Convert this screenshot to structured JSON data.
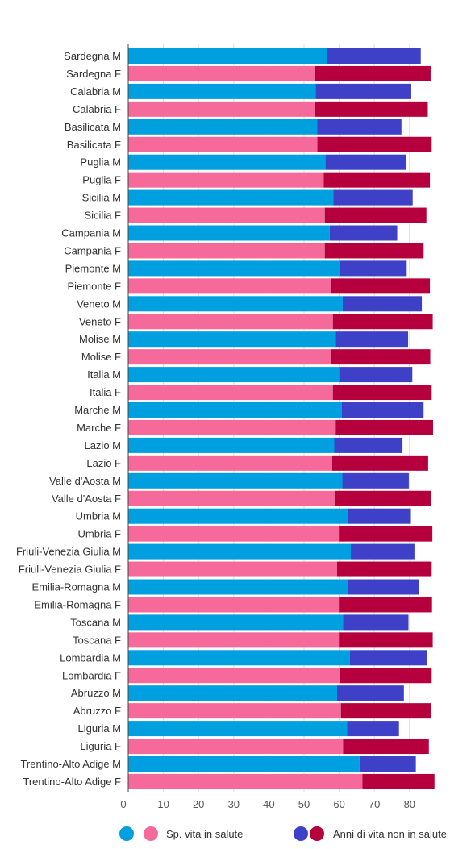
{
  "chart_data": {
    "type": "bar",
    "stacked": true,
    "orientation": "horizontal",
    "categories": [
      "Sardegna M",
      "Sardegna F",
      "Calabria M",
      "Calabria F",
      "Basilicata M",
      "Basilicata F",
      "Puglia M",
      "Puglia F",
      "Sicilia M",
      "Sicilia F",
      "Campania M",
      "Campania F",
      "Piemonte M",
      "Piemonte F",
      "Veneto M",
      "Veneto F",
      "Molise M",
      "Molise F",
      "Italia M",
      "Italia F",
      "Marche M",
      "Marche F",
      "Lazio M",
      "Lazio F",
      "Valle d'Aosta M",
      "Valle d'Aosta F",
      "Umbria M",
      "Umbria F",
      "Friuli-Venezia Giulia M",
      "Friuli-Venezia Giulia F",
      "Emilia-Romagna M",
      "Emilia-Romagna F",
      "Toscana M",
      "Toscana F",
      "Lombardia M",
      "Lombardia F",
      "Abruzzo M",
      "Abruzzo F",
      "Liguria M",
      "Liguria F",
      "Trentino-Alto Adige M",
      "Trentino-Alto Adige F"
    ],
    "series": [
      {
        "name": "Sp. vita in salute",
        "values": [
          56.5,
          53.1,
          53.3,
          53.0,
          53.7,
          53.8,
          56.1,
          55.6,
          58.3,
          55.9,
          57.3,
          55.9,
          60.1,
          57.6,
          61.0,
          58.2,
          59.0,
          57.8,
          60.0,
          58.2,
          60.7,
          59.0,
          58.6,
          58.0,
          60.9,
          58.9,
          62.4,
          59.9,
          63.3,
          59.4,
          62.6,
          59.9,
          61.1,
          59.9,
          63.0,
          60.3,
          59.4,
          60.5,
          62.2,
          61.1,
          65.8,
          66.6
        ],
        "colors": {
          "M": "#00a0e0",
          "F": "#f56a9a"
        }
      },
      {
        "name": "Anni di vita non in salute",
        "values": [
          26.7,
          32.9,
          27.2,
          32.2,
          24.0,
          32.5,
          23.0,
          30.2,
          22.6,
          28.9,
          19.2,
          28.1,
          19.1,
          28.2,
          22.5,
          28.4,
          20.6,
          28.1,
          20.8,
          28.1,
          23.3,
          27.7,
          19.4,
          27.3,
          18.9,
          27.3,
          18.0,
          26.6,
          18.1,
          26.9,
          20.2,
          26.5,
          18.6,
          26.7,
          22.0,
          26.0,
          19.0,
          25.6,
          14.8,
          24.4,
          16.0,
          20.5
        ],
        "colors": {
          "M": "#3f40c8",
          "F": "#b5003d"
        }
      }
    ],
    "xlim": [
      0,
      88
    ],
    "xticks": [
      0,
      10,
      20,
      30,
      40,
      50,
      60,
      70,
      80
    ],
    "grid": true,
    "legend": "bottom",
    "title": "",
    "xlabel": "",
    "ylabel": ""
  },
  "legend": {
    "items": [
      {
        "label": "Sp. vita in salute",
        "colors": [
          "#00a0e0",
          "#f56a9a"
        ]
      },
      {
        "label": "Anni di vita non in salute",
        "colors": [
          "#3f40c8",
          "#b5003d"
        ]
      }
    ]
  }
}
